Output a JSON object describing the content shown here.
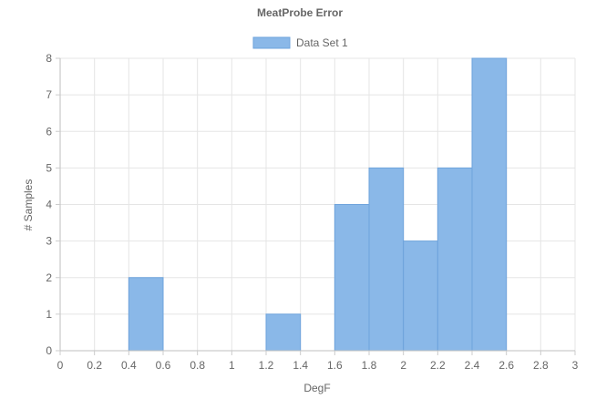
{
  "chart_data": {
    "type": "bar",
    "title": "MeatProbe Error",
    "xlabel": "DegF",
    "ylabel": "# Samples",
    "xlim": [
      0,
      3
    ],
    "ylim": [
      0,
      8
    ],
    "x_ticks": [
      "0",
      "0.2",
      "0.4",
      "0.6",
      "0.8",
      "1",
      "1.2",
      "1.4",
      "1.6",
      "1.8",
      "2",
      "2.2",
      "2.4",
      "2.6",
      "2.8",
      "3"
    ],
    "y_ticks": [
      "0",
      "1",
      "2",
      "3",
      "4",
      "5",
      "6",
      "7",
      "8"
    ],
    "grid": true,
    "legend_position": "top-center",
    "series": [
      {
        "name": "Data Set 1",
        "color": "#8ab8e8",
        "border_color": "#6ea3dc",
        "bins": [
          {
            "x0": 0.4,
            "x1": 0.6,
            "value": 2
          },
          {
            "x0": 1.2,
            "x1": 1.4,
            "value": 1
          },
          {
            "x0": 1.6,
            "x1": 1.8,
            "value": 4
          },
          {
            "x0": 1.8,
            "x1": 2.0,
            "value": 5
          },
          {
            "x0": 2.0,
            "x1": 2.2,
            "value": 3
          },
          {
            "x0": 2.2,
            "x1": 2.4,
            "value": 5
          },
          {
            "x0": 2.4,
            "x1": 2.6,
            "value": 8
          }
        ]
      }
    ]
  }
}
